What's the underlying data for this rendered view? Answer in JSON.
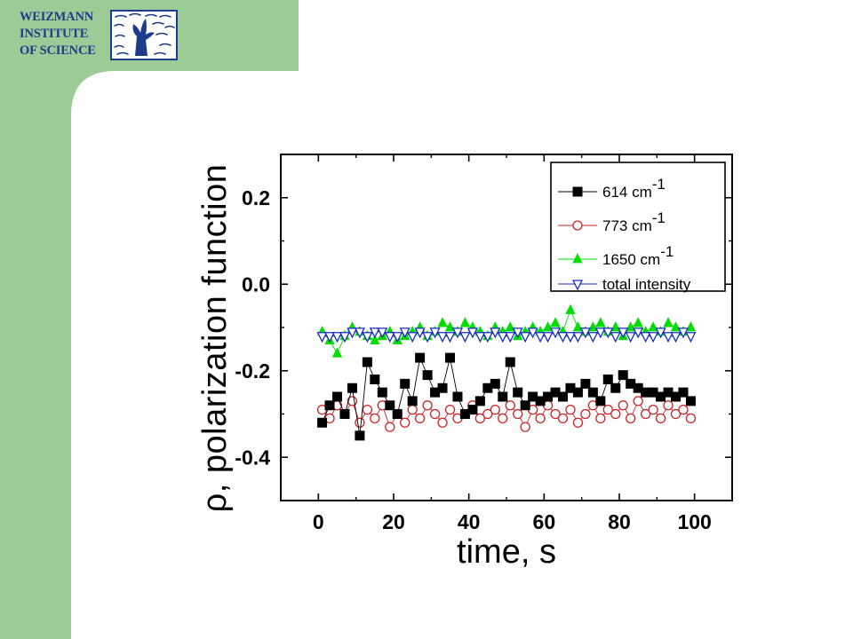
{
  "logo": {
    "lines": [
      "WEIZMANN",
      "INSTITUTE",
      "OF SCIENCE"
    ],
    "color": "#1d3c8c"
  },
  "slide": {
    "sidebar_color": "#9ccc96"
  },
  "chart_data": {
    "type": "scatter",
    "title": "",
    "xlabel": "time, s",
    "ylabel": "ρ, polarization function",
    "xlim": [
      -10,
      110
    ],
    "ylim": [
      -0.5,
      0.3
    ],
    "xticks": [
      0,
      20,
      40,
      60,
      80,
      100
    ],
    "xtick_labels": [
      "0",
      "20",
      "40",
      "60",
      "80",
      "100"
    ],
    "yticks": [
      -0.4,
      -0.2,
      0.0,
      0.2
    ],
    "ytick_labels": [
      "-0.4",
      "-0.2",
      "0.0",
      "0.2"
    ],
    "grid": false,
    "legend_position": "top-right",
    "series": [
      {
        "name": "614 cm-1",
        "label_main": "614 cm",
        "label_sup": "-1",
        "color": "#000000",
        "marker": "square-filled",
        "x": [
          1,
          3,
          5,
          7,
          9,
          11,
          13,
          15,
          17,
          19,
          21,
          23,
          25,
          27,
          29,
          31,
          33,
          35,
          37,
          39,
          41,
          43,
          45,
          47,
          49,
          51,
          53,
          55,
          57,
          59,
          61,
          63,
          65,
          67,
          69,
          71,
          73,
          75,
          77,
          79,
          81,
          83,
          85,
          87,
          89,
          91,
          93,
          95,
          97,
          99
        ],
        "y": [
          -0.32,
          -0.28,
          -0.26,
          -0.3,
          -0.24,
          -0.35,
          -0.18,
          -0.22,
          -0.25,
          -0.28,
          -0.3,
          -0.23,
          -0.27,
          -0.17,
          -0.21,
          -0.25,
          -0.24,
          -0.17,
          -0.26,
          -0.3,
          -0.29,
          -0.27,
          -0.24,
          -0.23,
          -0.26,
          -0.18,
          -0.25,
          -0.28,
          -0.26,
          -0.27,
          -0.26,
          -0.25,
          -0.26,
          -0.24,
          -0.25,
          -0.23,
          -0.25,
          -0.27,
          -0.22,
          -0.24,
          -0.21,
          -0.23,
          -0.24,
          -0.25,
          -0.25,
          -0.26,
          -0.25,
          -0.26,
          -0.25,
          -0.27
        ]
      },
      {
        "name": "773 cm-1",
        "label_main": "773 cm",
        "label_sup": "-1",
        "color": "#cc2222",
        "marker": "circle-open",
        "x": [
          1,
          3,
          5,
          7,
          9,
          11,
          13,
          15,
          17,
          19,
          21,
          23,
          25,
          27,
          29,
          31,
          33,
          35,
          37,
          39,
          41,
          43,
          45,
          47,
          49,
          51,
          53,
          55,
          57,
          59,
          61,
          63,
          65,
          67,
          69,
          71,
          73,
          75,
          77,
          79,
          81,
          83,
          85,
          87,
          89,
          91,
          93,
          95,
          97,
          99
        ],
        "y": [
          -0.29,
          -0.31,
          -0.28,
          -0.3,
          -0.27,
          -0.32,
          -0.29,
          -0.31,
          -0.28,
          -0.33,
          -0.3,
          -0.32,
          -0.29,
          -0.31,
          -0.28,
          -0.3,
          -0.32,
          -0.29,
          -0.31,
          -0.3,
          -0.28,
          -0.31,
          -0.3,
          -0.29,
          -0.31,
          -0.28,
          -0.3,
          -0.33,
          -0.29,
          -0.31,
          -0.28,
          -0.3,
          -0.31,
          -0.29,
          -0.32,
          -0.3,
          -0.28,
          -0.31,
          -0.29,
          -0.3,
          -0.28,
          -0.31,
          -0.27,
          -0.3,
          -0.29,
          -0.31,
          -0.28,
          -0.3,
          -0.29,
          -0.31
        ]
      },
      {
        "name": "1650 cm-1",
        "label_main": "1650 cm",
        "label_sup": "-1",
        "color": "#00dd00",
        "marker": "triangle-up-filled",
        "x": [
          1,
          3,
          5,
          7,
          9,
          11,
          13,
          15,
          17,
          19,
          21,
          23,
          25,
          27,
          29,
          31,
          33,
          35,
          37,
          39,
          41,
          43,
          45,
          47,
          49,
          51,
          53,
          55,
          57,
          59,
          61,
          63,
          65,
          67,
          69,
          71,
          73,
          75,
          77,
          79,
          81,
          83,
          85,
          87,
          89,
          91,
          93,
          95,
          97,
          99
        ],
        "y": [
          -0.11,
          -0.13,
          -0.16,
          -0.12,
          -0.1,
          -0.11,
          -0.12,
          -0.13,
          -0.12,
          -0.11,
          -0.13,
          -0.12,
          -0.11,
          -0.1,
          -0.12,
          -0.11,
          -0.09,
          -0.1,
          -0.11,
          -0.09,
          -0.1,
          -0.11,
          -0.12,
          -0.1,
          -0.11,
          -0.1,
          -0.12,
          -0.11,
          -0.1,
          -0.11,
          -0.1,
          -0.09,
          -0.11,
          -0.06,
          -0.1,
          -0.11,
          -0.1,
          -0.09,
          -0.11,
          -0.1,
          -0.12,
          -0.1,
          -0.09,
          -0.11,
          -0.1,
          -0.11,
          -0.09,
          -0.1,
          -0.11,
          -0.1
        ]
      },
      {
        "name": "total intensity",
        "label_main": "total intensity",
        "label_sup": "",
        "color": "#1a2dbf",
        "marker": "triangle-down-open",
        "x": [
          1,
          3,
          5,
          7,
          9,
          11,
          13,
          15,
          17,
          19,
          21,
          23,
          25,
          27,
          29,
          31,
          33,
          35,
          37,
          39,
          41,
          43,
          45,
          47,
          49,
          51,
          53,
          55,
          57,
          59,
          61,
          63,
          65,
          67,
          69,
          71,
          73,
          75,
          77,
          79,
          81,
          83,
          85,
          87,
          89,
          91,
          93,
          95,
          97,
          99
        ],
        "y": [
          -0.12,
          -0.12,
          -0.12,
          -0.12,
          -0.11,
          -0.11,
          -0.12,
          -0.11,
          -0.11,
          -0.12,
          -0.12,
          -0.11,
          -0.12,
          -0.11,
          -0.12,
          -0.11,
          -0.12,
          -0.12,
          -0.11,
          -0.12,
          -0.11,
          -0.12,
          -0.12,
          -0.11,
          -0.12,
          -0.12,
          -0.11,
          -0.12,
          -0.11,
          -0.12,
          -0.12,
          -0.11,
          -0.12,
          -0.12,
          -0.12,
          -0.11,
          -0.12,
          -0.11,
          -0.11,
          -0.12,
          -0.11,
          -0.12,
          -0.11,
          -0.12,
          -0.12,
          -0.11,
          -0.12,
          -0.12,
          -0.11,
          -0.12
        ]
      }
    ]
  }
}
